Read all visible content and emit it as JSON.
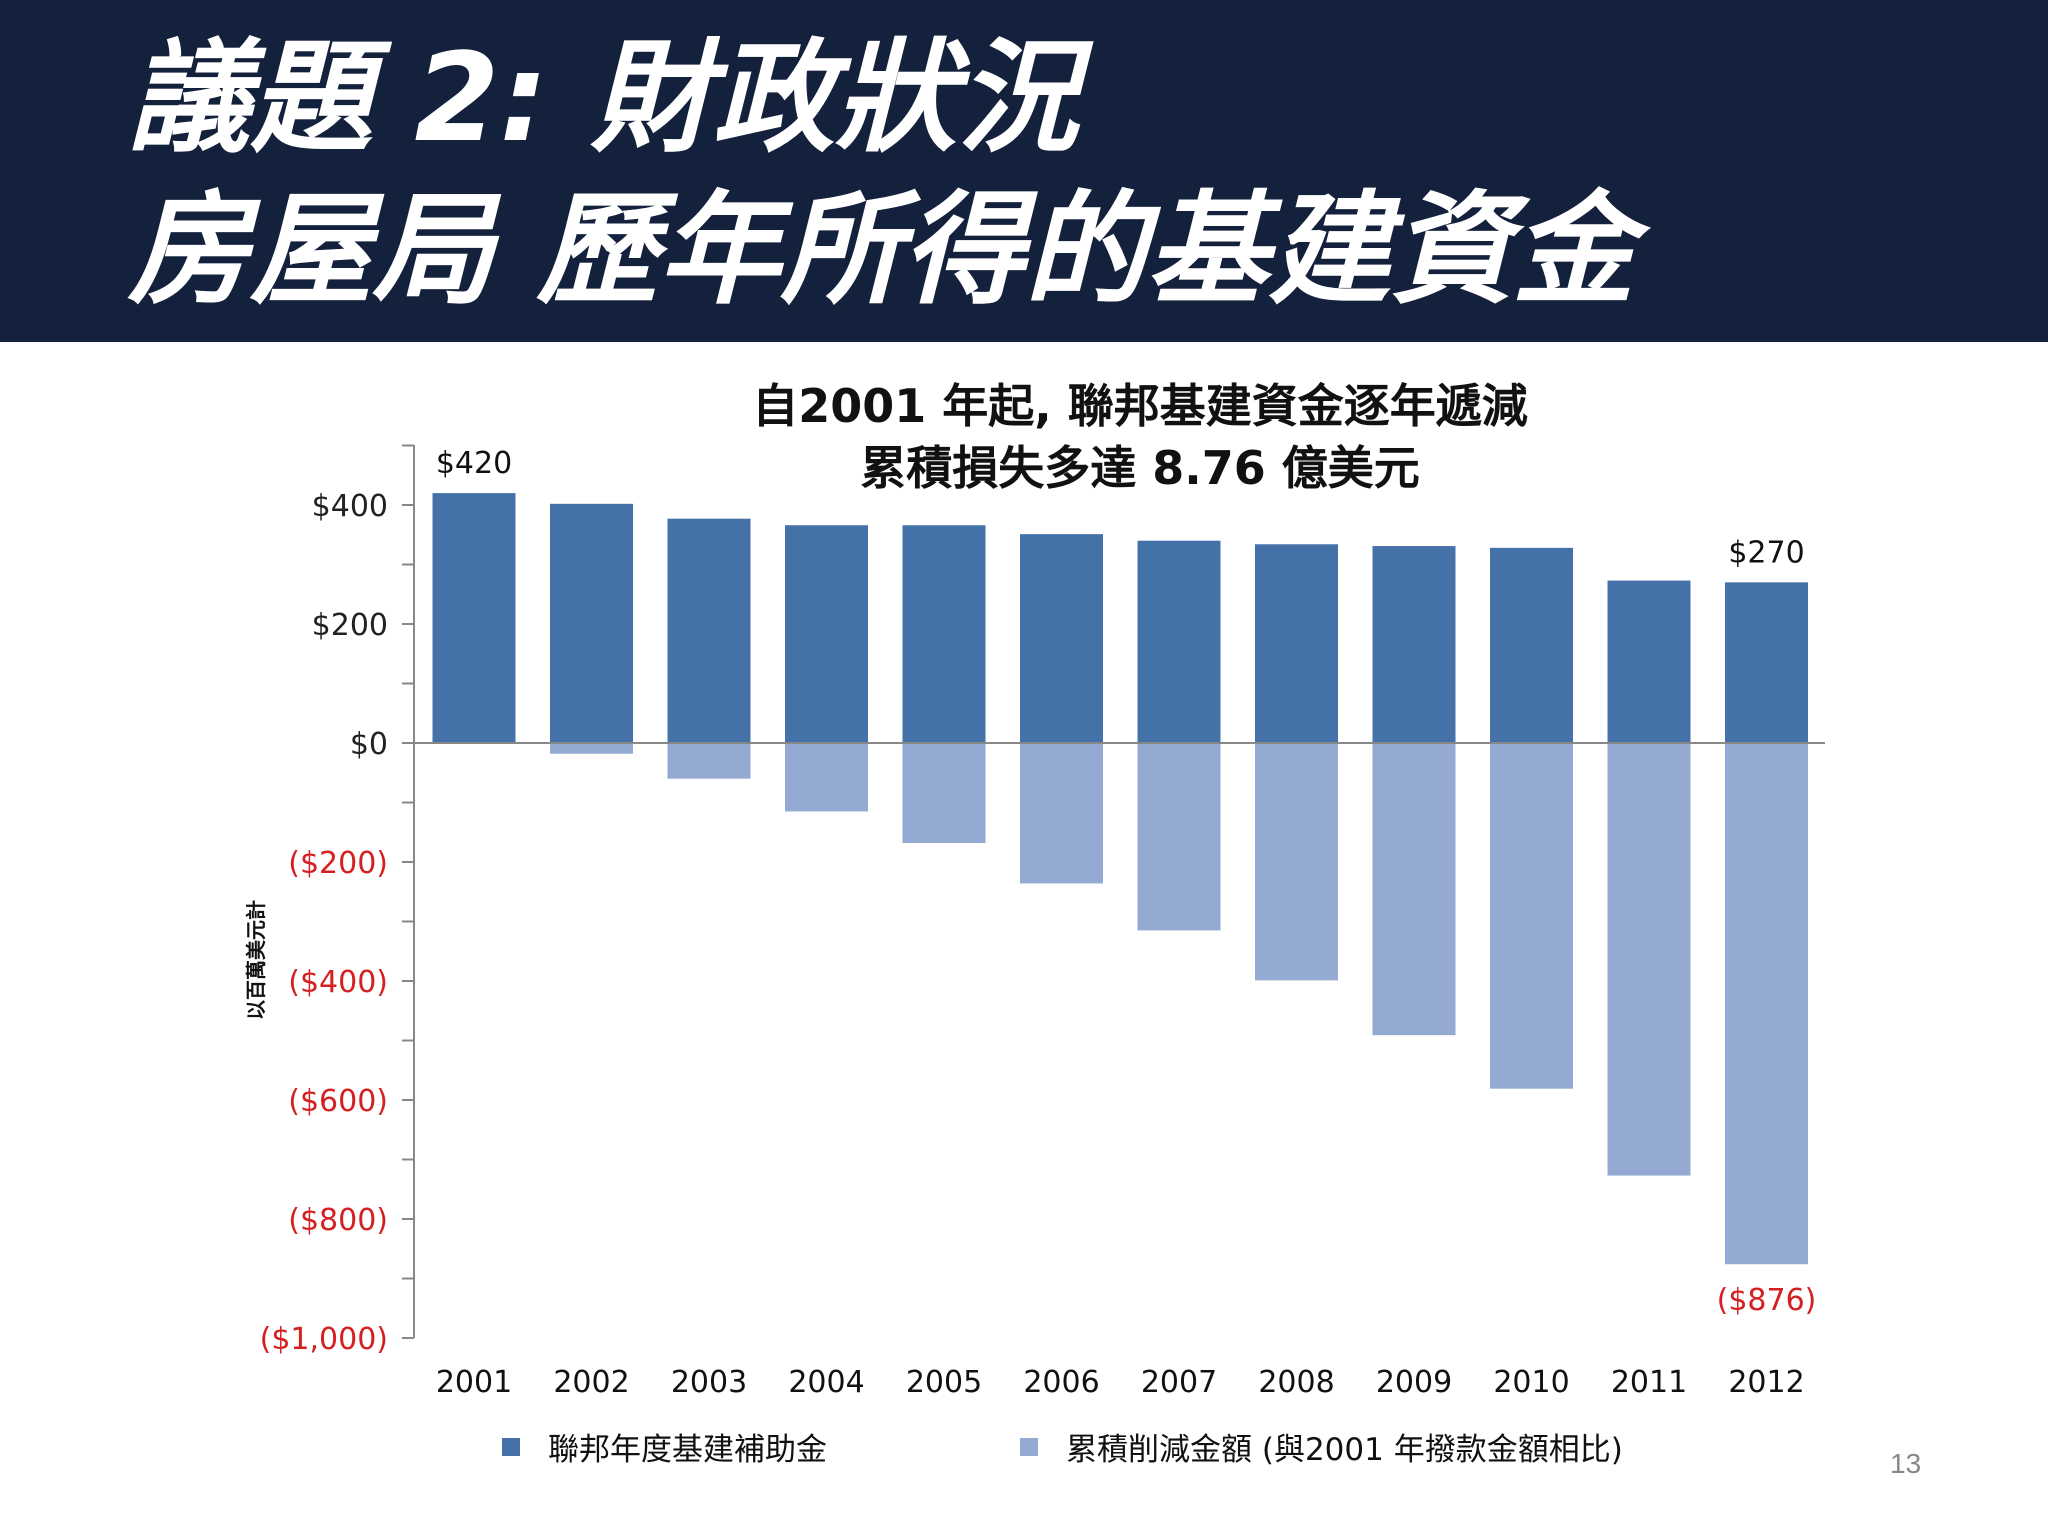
{
  "header": {
    "title_line1": "議題 2: 財政狀況",
    "title_line2": "房屋局 歷年所得的基建資金"
  },
  "colors": {
    "header_bg": "#14213d",
    "funding": "#4472a8",
    "reduction": "#95aad2",
    "negative_tick": "#d42020"
  },
  "chart_data": {
    "type": "bar",
    "title": "自2001 年起, 聯邦基建資金逐年遞減",
    "subtitle": "累積損失多達 8.76 億美元",
    "ylabel": "以百萬美元計",
    "categories": [
      "2001",
      "2002",
      "2003",
      "2004",
      "2005",
      "2006",
      "2007",
      "2008",
      "2009",
      "2010",
      "2011",
      "2012"
    ],
    "series": [
      {
        "name": "聯邦年度基建補助金",
        "values": [
          420,
          402,
          377,
          366,
          366,
          351,
          340,
          334,
          331,
          328,
          273,
          270
        ]
      },
      {
        "name": "累積削減金額 (與2001 年撥款金額相比)",
        "values": [
          0,
          -18,
          -60,
          -115,
          -168,
          -236,
          -315,
          -399,
          -491,
          -581,
          -727,
          -876
        ]
      }
    ],
    "ylim": [
      -1000,
      400
    ],
    "yticks": [
      {
        "value": 400,
        "label": "$400"
      },
      {
        "value": 200,
        "label": "$200"
      },
      {
        "value": 0,
        "label": "$0"
      },
      {
        "value": -200,
        "label": "($200)"
      },
      {
        "value": -400,
        "label": "($400)"
      },
      {
        "value": -600,
        "label": "($600)"
      },
      {
        "value": -800,
        "label": "($800)"
      },
      {
        "value": -1000,
        "label": "($1,000)"
      }
    ],
    "data_labels": [
      {
        "series": 0,
        "index": 0,
        "text": "$420"
      },
      {
        "series": 0,
        "index": 11,
        "text": "$270"
      },
      {
        "series": 1,
        "index": 11,
        "text": "($876)"
      }
    ],
    "grid": false,
    "legend_position": "bottom"
  },
  "page": {
    "number": "13"
  }
}
